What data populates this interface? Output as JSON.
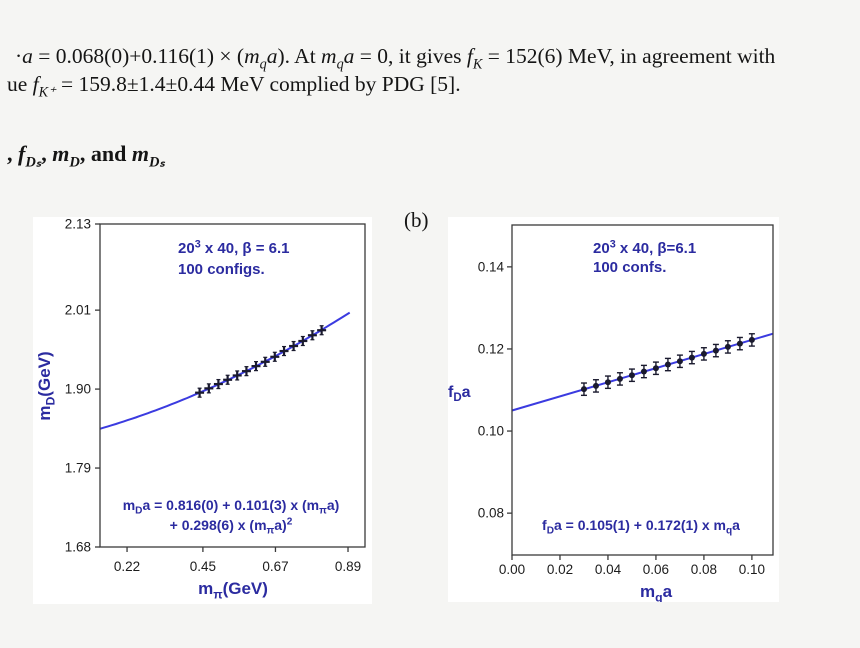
{
  "page": {
    "background": "#f5f5f3"
  },
  "colors": {
    "plot_line": "#3b3be0",
    "plot_text": "#2b2ba0",
    "marker": "#1a1a2e",
    "frame": "#3a3a3a",
    "tick_text": "#1c1c1c"
  },
  "text": {
    "line1": "·$a$ = 0.068(0)+0.116(1) × ($m_{q}a$). At $m_{q}a$ = 0, it gives $f_{K}$ = 152(6) MeV, in agreement with",
    "line2": "ue $f_{K⁺}$ = 159.8±1.4±0.44 MeV complied by PDG [5].",
    "heading": ", $f_{Dₛ}$, $m_{D}$, and $m_{Dₛ}$",
    "subfig_label": "(b)"
  },
  "chart_data": [
    {
      "type": "scatter",
      "title_lines": [
        "20^{3} x 40, β = 6.1",
        "100 configs."
      ],
      "equation_lines": [
        "m_{D}a = 0.816(0) + 0.101(3) x (m_{π}a)",
        "+ 0.298(6) x (m_{π}a)^{2}"
      ],
      "xlabel": "m_{π}(GeV)",
      "ylabel": "m_{D}(GeV)",
      "x_ticks": [
        0.22,
        0.45,
        0.67,
        0.89
      ],
      "x_tick_labels": [
        "0.22",
        "0.45",
        "0.67",
        "0.89"
      ],
      "y_ticks": [
        1.68,
        1.79,
        1.9,
        2.01,
        2.13
      ],
      "y_tick_labels": [
        "1.68",
        "1.79",
        "1.90",
        "2.01",
        "2.13"
      ],
      "x_range": [
        0.138,
        0.9415
      ],
      "y_range": [
        1.68,
        2.13
      ],
      "grid": false,
      "fit": {
        "kind": "quadratic",
        "coeffs": [
          1.828,
          0.1063,
          0.1042
        ],
        "x_min": 0.138,
        "x_max": 0.895
      },
      "marker": "plus",
      "point_error": 0.004,
      "points": [
        [
          0.44,
          1.895
        ],
        [
          0.468,
          1.901
        ],
        [
          0.497,
          1.907
        ],
        [
          0.525,
          1.913
        ],
        [
          0.554,
          1.919
        ],
        [
          0.582,
          1.925
        ],
        [
          0.611,
          1.932
        ],
        [
          0.639,
          1.938
        ],
        [
          0.668,
          1.945
        ],
        [
          0.696,
          1.953
        ],
        [
          0.725,
          1.96
        ],
        [
          0.753,
          1.967
        ],
        [
          0.782,
          1.975
        ],
        [
          0.81,
          1.982
        ]
      ]
    },
    {
      "type": "scatter",
      "title_lines": [
        "20^{3} x 40, β=6.1",
        "100 confs."
      ],
      "equation_lines": [
        "f_{D}a = 0.105(1) + 0.172(1) x m_{q}a"
      ],
      "xlabel": "m_{q}a",
      "ylabel": "f_{D}a",
      "x_ticks": [
        0.0,
        0.02,
        0.04,
        0.06,
        0.08,
        0.1
      ],
      "x_tick_labels": [
        "0.00",
        "0.02",
        "0.04",
        "0.06",
        "0.08",
        "0.10"
      ],
      "y_ticks": [
        0.08,
        0.1,
        0.12,
        0.14
      ],
      "y_tick_labels": [
        "0.08",
        "0.10",
        "0.12",
        "0.14"
      ],
      "x_range": [
        0.0,
        0.1088
      ],
      "y_range": [
        0.0698,
        0.1502
      ],
      "grid": false,
      "fit": {
        "kind": "linear",
        "coeffs": [
          0.105,
          0.172
        ],
        "x_min": 0.0,
        "x_max": 0.1088
      },
      "marker": "circle",
      "point_error": 0.0015,
      "points": [
        [
          0.03,
          0.1102
        ],
        [
          0.035,
          0.111
        ],
        [
          0.04,
          0.1119
        ],
        [
          0.045,
          0.1127
        ],
        [
          0.05,
          0.1136
        ],
        [
          0.055,
          0.1145
        ],
        [
          0.06,
          0.1153
        ],
        [
          0.065,
          0.1162
        ],
        [
          0.07,
          0.117
        ],
        [
          0.075,
          0.1179
        ],
        [
          0.08,
          0.1188
        ],
        [
          0.085,
          0.1196
        ],
        [
          0.09,
          0.1205
        ],
        [
          0.095,
          0.1213
        ],
        [
          0.1,
          0.1222
        ]
      ]
    }
  ]
}
